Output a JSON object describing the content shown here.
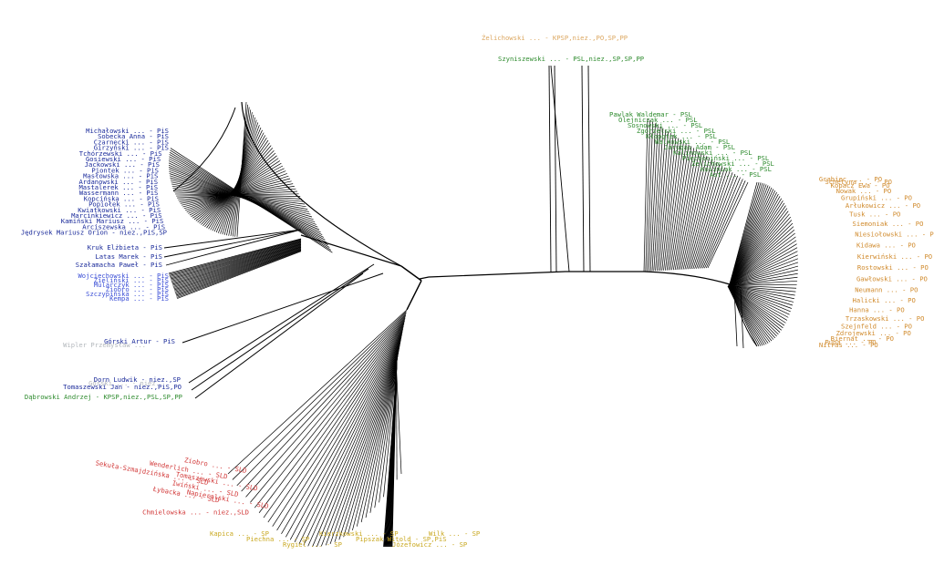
{
  "colors": {
    "branch": "#000000",
    "pis": "#1a2a9a",
    "pis_light": "#3b4fd6",
    "psl": "#2e8b2e",
    "po": "#d08a2c",
    "sld": "#d23a3a",
    "sp": "#c9a820",
    "gray": "#9aa0a6"
  },
  "clusters": {
    "pis_top": {
      "color": "pis",
      "labels": [
        "Michałowski ... - PiS",
        "Sobecka Anna - PiS",
        "Czarnecki ... - PiS",
        "Girzyński ... - PiS",
        "Tchórzewski ... - PiS",
        "Gosiewski ... - PiS",
        "Jackowski ... - PiS",
        "Piontek ... - PiS",
        "Masłowska ... - PiS",
        "Ardanowski ... - PiS",
        "Mastalerek ... - PiS",
        "Wassermann ... - PiS",
        "Kopcińska ... - PiS",
        "Popiołek ... - PiS",
        "Kwiatkowski ... - PiS",
        "Marcinkiewicz ... - PiS",
        "Kamiński Mariusz ... - PiS",
        "Arciszewska ... - PiS",
        "Jędrysek Mariusz Orion - niez.,PiS,SP"
      ]
    },
    "pis_named": {
      "color": "pis",
      "labels": [
        "Kruk Elżbieta - PiS",
        "Latas Marek - PiS",
        "Szałamacha Paweł - PiS"
      ]
    },
    "pis_low": {
      "color": "pis_light",
      "labels": [
        "Wojciechowski ... - PiS",
        "Zieliński ... - PiS",
        "Mularczyk ... - PiS",
        "Ziobro ... - PiS",
        "Szczypińska ... - PiS",
        "Kempa ... - PiS"
      ]
    },
    "mid_left": {
      "labels": [
        {
          "text": "Górski Artur - PiS",
          "color": "pis"
        },
        {
          "text": "Wipler Przemysław ...",
          "color": "gray"
        },
        {
          "text": "Dorn Ludwik - niez.,SP",
          "color": "pis"
        },
        {
          "text": "Górski ... - niez.",
          "color": "gray"
        },
        {
          "text": "Tomaszewski Jan - niez.,PiS,PO",
          "color": "pis"
        },
        {
          "text": "Dąbrowski Andrzej - KPSP,niez.,PSL,SP,PP",
          "color": "psl"
        }
      ]
    },
    "top_center": {
      "labels": [
        {
          "text": "Żelichowski ... - KPSP,niez.,PO,SP,PP",
          "color": "po"
        },
        {
          "text": "Szyniszewski ... - PSL,niez.,SP,SP,PP",
          "color": "psl"
        }
      ]
    },
    "psl": {
      "color": "psl",
      "labels": [
        "Pawlak Waldemar - PSL",
        "Olejniczak ... - PSL",
        "Sosnowski ... - PSL",
        "Zgorzelski ... - PSL",
        "Kłopotek ... - PSL",
        "Walkowski ... - PSL",
        "Jarubas Adam - PSL",
        "Kalinowski ... - PSL",
        "Piechociński ... - PSL",
        "Żelichowski ... - PSL",
        "Kosiniak ... - PSL",
        "Ast ... - PSL"
      ]
    },
    "po": {
      "color": "po",
      "labels": [
        "Grabiec ... - PO",
        "Schetyna ... - PO",
        "Kopacz Ewa - PO",
        "Nowak ... - PO",
        "Grupiński ... - PO",
        "Arłukowicz ... - PO",
        "Tusk ... - PO",
        "Siemoniak ... - PO",
        "Niesiołowski ... - PO",
        "Kidawa ... - PO",
        "Kierwiński ... - PO",
        "Rostowski ... - PO",
        "Gawłowski ... - PO",
        "Neumann ... - PO",
        "Halicki ... - PO",
        "Hanna ... - PO",
        "Trzaskowski ... - PO",
        "Szejnfeld ... - PO",
        "Zdrojewski ... - PO",
        "Biernat ... - PO",
        "Pupa ... - PO",
        "Nitras ... - PO"
      ]
    },
    "sld": {
      "color": "sld",
      "labels": [
        "Ziobro ... - SLD",
        "Wenderlich ... - SLD",
        "Sekuła-Szmajdzińska ... - SLD",
        "Tomaszewski ... - SLD",
        "Iwiński ... - SLD",
        "Łybacka ... - SLD",
        "Napieralski ... - SLD",
        "Chmielowska ... - niez.,SLD"
      ]
    },
    "sp": {
      "color": "sp",
      "labels": [
        "Kapica ... - SP",
        "Piechna ... - SP",
        "Rygiel ... - SP",
        "Kierzkowski ... - SP",
        "Pipszak Witold - SP,PiS",
        "Józefowicz ... - SP",
        "Wilk ... - SP"
      ]
    }
  }
}
